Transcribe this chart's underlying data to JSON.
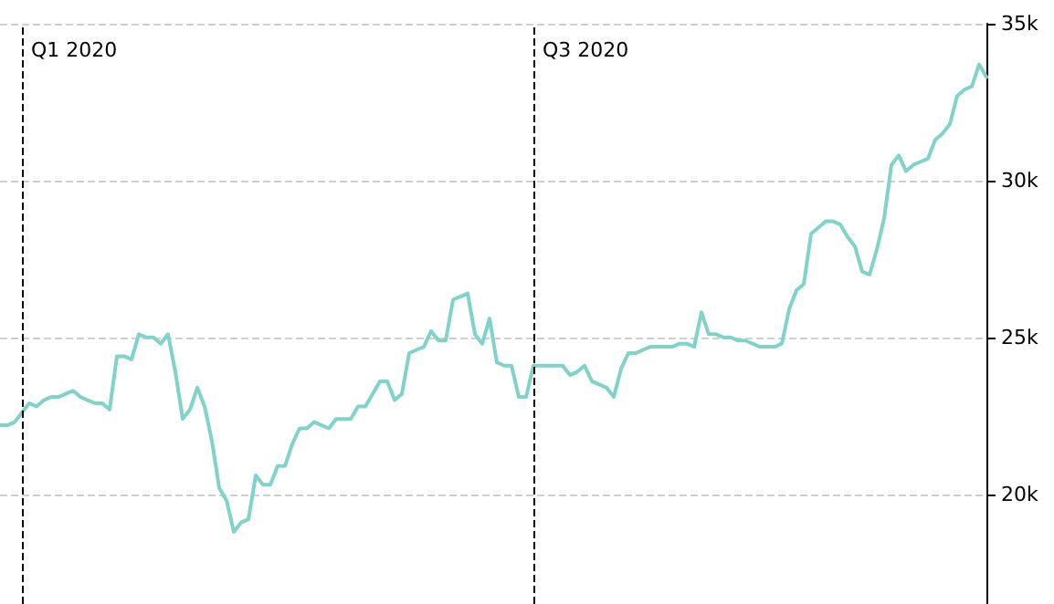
{
  "chart_data": {
    "type": "line",
    "ylim": [
      16500,
      35000
    ],
    "categories": [
      null,
      null,
      null,
      null,
      null,
      null,
      null,
      null,
      null,
      null,
      null,
      null,
      null,
      null,
      null,
      null,
      null,
      null,
      null,
      null,
      null,
      null,
      null,
      null,
      null,
      null,
      null,
      null,
      null,
      null,
      null,
      null,
      null,
      null,
      null,
      null,
      null,
      null,
      null,
      null,
      null,
      null,
      null,
      null,
      null,
      null,
      null,
      null,
      null,
      null,
      null,
      null,
      null,
      null,
      null,
      null,
      null,
      null,
      null,
      null,
      null,
      null,
      null,
      null,
      null,
      null,
      null,
      null,
      null,
      null,
      null,
      null,
      null,
      null,
      null,
      null,
      null,
      null,
      null,
      null,
      null,
      null,
      null,
      null,
      null,
      null,
      null,
      null,
      null,
      null,
      null,
      null,
      null,
      null,
      null,
      null,
      null,
      null,
      null,
      null,
      null,
      null,
      null,
      null,
      null,
      null,
      null,
      null,
      null,
      null,
      null,
      null,
      null,
      null,
      null,
      null,
      null,
      null,
      null,
      null,
      null,
      null,
      null,
      null,
      null,
      null,
      null,
      null,
      null,
      null,
      null,
      null,
      null,
      null,
      null,
      null
    ],
    "yticks": [
      {
        "value": 20000,
        "label": "20k"
      },
      {
        "value": 25000,
        "label": "25k"
      },
      {
        "value": 30000,
        "label": "30k"
      },
      {
        "value": 35000,
        "label": "35k"
      }
    ],
    "grid": "y",
    "tick_labels": "y",
    "line_style": "solid",
    "annotations": [
      "Q1 2020",
      "Q3 2020"
    ],
    "series": [
      {
        "color": "#7fd3c8",
        "values": [
          22200,
          22200,
          22300,
          22600,
          22900,
          22800,
          23000,
          23100,
          23100,
          23200,
          23300,
          23100,
          23000,
          22900,
          22900,
          22700,
          24400,
          24400,
          24300,
          25100,
          25000,
          25000,
          24800,
          25100,
          23900,
          22400,
          22700,
          23400,
          22800,
          21700,
          20200,
          19800,
          18800,
          19100,
          19200,
          20600,
          20300,
          20300,
          20900,
          20900,
          21600,
          22100,
          22100,
          22300,
          22200,
          22100,
          22400,
          22400,
          22400,
          22800,
          22800,
          23200,
          23600,
          23600,
          23000,
          23200,
          24500,
          24600,
          24700,
          25200,
          24900,
          24900,
          26200,
          26300,
          26400,
          25100,
          24800,
          25600,
          24200,
          24100,
          24100,
          23100,
          23100,
          24100,
          24100,
          24100,
          24100,
          24100,
          23800,
          23900,
          24100,
          23600,
          23500,
          23400,
          23100,
          24000,
          24500,
          24500,
          24600,
          24700,
          24700,
          24700,
          24700,
          24800,
          24800,
          24700,
          25800,
          25100,
          25100,
          25000,
          25000,
          24900,
          24900,
          24800,
          24700,
          24700,
          24700,
          24800,
          25900,
          26500,
          26700,
          28300,
          28500,
          28700,
          28700,
          28600,
          28200,
          27900,
          27100,
          27000,
          27800,
          28800,
          30500,
          30800,
          30300,
          30500,
          30600,
          30700,
          31300,
          31500,
          31800,
          32700,
          32900,
          33000,
          33700,
          33300
        ]
      }
    ]
  }
}
